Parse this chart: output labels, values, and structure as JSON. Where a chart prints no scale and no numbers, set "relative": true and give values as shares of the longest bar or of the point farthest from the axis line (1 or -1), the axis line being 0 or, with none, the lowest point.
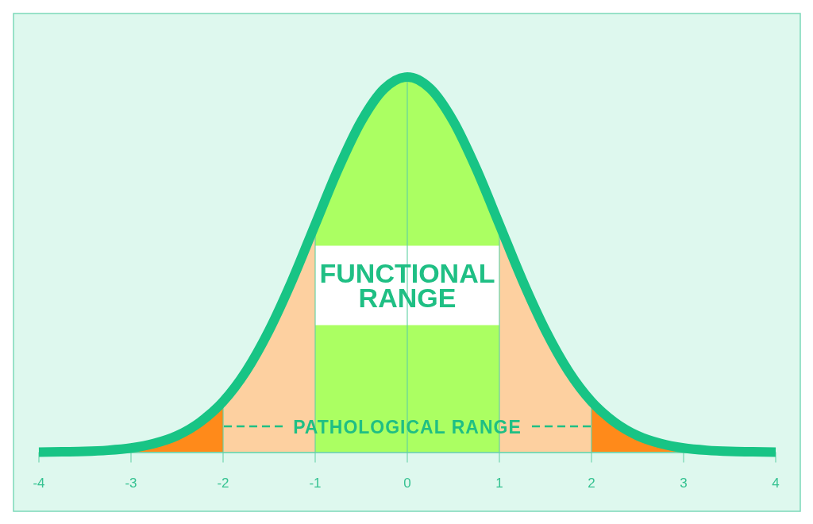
{
  "chart_data": {
    "type": "line",
    "relative": true,
    "color": "#18c485",
    "x": [
      -4,
      -3.75,
      -3.5,
      -3.25,
      -3,
      -2.75,
      -2.5,
      -2.25,
      -2,
      -1.75,
      -1.5,
      -1.25,
      -1,
      -0.75,
      -0.5,
      -0.25,
      0,
      0.25,
      0.5,
      0.75,
      1,
      1.25,
      1.5,
      1.75,
      2,
      2.25,
      2.5,
      2.75,
      3,
      3.25,
      3.5,
      3.75,
      4
    ],
    "values": [
      0,
      0.001,
      0.002,
      0.005,
      0.011,
      0.023,
      0.044,
      0.08,
      0.135,
      0.216,
      0.325,
      0.458,
      0.607,
      0.755,
      0.882,
      0.969,
      1,
      0.969,
      0.882,
      0.755,
      0.607,
      0.458,
      0.325,
      0.216,
      0.135,
      0.08,
      0.044,
      0.023,
      0.011,
      0.005,
      0.002,
      0.001,
      0
    ],
    "xlim": [
      -4,
      4
    ],
    "xticks": [
      -4,
      -3,
      -2,
      -1,
      0,
      1,
      2,
      3,
      4
    ],
    "grid": "x",
    "bands": [
      {
        "axis": "x",
        "from": -3,
        "to": -2,
        "color": "#ff8a1a"
      },
      {
        "axis": "x",
        "from": 2,
        "to": 3,
        "color": "#ff8a1a"
      },
      {
        "axis": "x",
        "from": -2,
        "to": 2,
        "color": "#fdd0a0",
        "label": "PATHOLOGICAL RANGE"
      },
      {
        "axis": "x",
        "from": -1,
        "to": 1,
        "color": "#abff62",
        "label": "FUNCTIONAL RANGE"
      }
    ]
  }
}
